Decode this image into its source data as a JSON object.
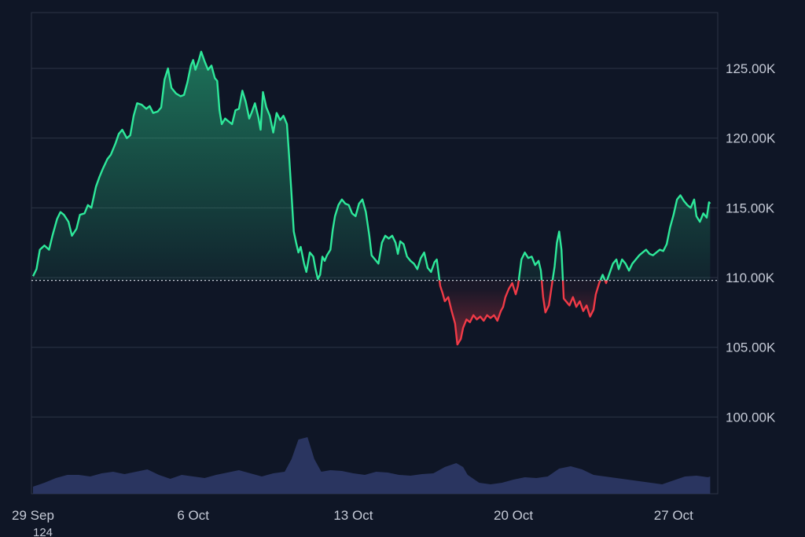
{
  "chart_data": {
    "type": "area",
    "baseline": 109.8,
    "y_unit_suffix": "K",
    "ylim": [
      94.5,
      129.0
    ],
    "grid": true,
    "y_ticks": [
      {
        "value": 125,
        "label": "125.00K"
      },
      {
        "value": 120,
        "label": "120.00K"
      },
      {
        "value": 115,
        "label": "115.00K"
      },
      {
        "value": 110,
        "label": "110.00K"
      },
      {
        "value": 105,
        "label": "105.00K"
      },
      {
        "value": 100,
        "label": "100.00K"
      }
    ],
    "x_ticks": [
      {
        "day": 0,
        "label": "29 Sep"
      },
      {
        "day": 7,
        "label": "6 Oct"
      },
      {
        "day": 14,
        "label": "13 Oct"
      },
      {
        "day": 21,
        "label": "20 Oct"
      },
      {
        "day": 28,
        "label": "27 Oct"
      }
    ],
    "extra_label": "124",
    "colors": {
      "up": "#2ee89a",
      "down": "#f03a47",
      "volume": "#2a3560",
      "grid": "#2c3445",
      "background": "#0f1626"
    },
    "price": [
      [
        0.0,
        110.1
      ],
      [
        0.15,
        110.6
      ],
      [
        0.3,
        112.0
      ],
      [
        0.5,
        112.3
      ],
      [
        0.7,
        112.0
      ],
      [
        0.85,
        113.0
      ],
      [
        1.05,
        114.2
      ],
      [
        1.2,
        114.7
      ],
      [
        1.35,
        114.5
      ],
      [
        1.55,
        114.0
      ],
      [
        1.7,
        113.0
      ],
      [
        1.9,
        113.5
      ],
      [
        2.05,
        114.5
      ],
      [
        2.25,
        114.6
      ],
      [
        2.4,
        115.2
      ],
      [
        2.55,
        115.0
      ],
      [
        2.75,
        116.5
      ],
      [
        2.9,
        117.2
      ],
      [
        3.05,
        117.8
      ],
      [
        3.25,
        118.5
      ],
      [
        3.4,
        118.8
      ],
      [
        3.6,
        119.6
      ],
      [
        3.75,
        120.3
      ],
      [
        3.9,
        120.6
      ],
      [
        4.1,
        120.0
      ],
      [
        4.25,
        120.2
      ],
      [
        4.4,
        121.6
      ],
      [
        4.55,
        122.5
      ],
      [
        4.75,
        122.4
      ],
      [
        4.95,
        122.1
      ],
      [
        5.1,
        122.3
      ],
      [
        5.25,
        121.8
      ],
      [
        5.45,
        121.9
      ],
      [
        5.6,
        122.2
      ],
      [
        5.75,
        124.2
      ],
      [
        5.9,
        125.0
      ],
      [
        6.05,
        123.6
      ],
      [
        6.25,
        123.2
      ],
      [
        6.45,
        123.0
      ],
      [
        6.6,
        123.1
      ],
      [
        6.75,
        124.0
      ],
      [
        6.9,
        125.2
      ],
      [
        7.0,
        125.6
      ],
      [
        7.1,
        124.9
      ],
      [
        7.25,
        125.6
      ],
      [
        7.35,
        126.2
      ],
      [
        7.5,
        125.5
      ],
      [
        7.65,
        124.9
      ],
      [
        7.8,
        125.2
      ],
      [
        7.95,
        124.3
      ],
      [
        8.05,
        124.1
      ],
      [
        8.15,
        122.0
      ],
      [
        8.25,
        121.0
      ],
      [
        8.4,
        121.4
      ],
      [
        8.55,
        121.2
      ],
      [
        8.7,
        121.0
      ],
      [
        8.85,
        122.0
      ],
      [
        9.0,
        122.1
      ],
      [
        9.15,
        123.4
      ],
      [
        9.3,
        122.6
      ],
      [
        9.45,
        121.4
      ],
      [
        9.55,
        121.8
      ],
      [
        9.7,
        122.5
      ],
      [
        9.85,
        121.5
      ],
      [
        9.95,
        120.6
      ],
      [
        10.05,
        123.3
      ],
      [
        10.2,
        122.2
      ],
      [
        10.35,
        121.6
      ],
      [
        10.5,
        120.4
      ],
      [
        10.65,
        121.8
      ],
      [
        10.8,
        121.3
      ],
      [
        10.95,
        121.6
      ],
      [
        11.1,
        121.0
      ],
      [
        11.2,
        118.6
      ],
      [
        11.3,
        116.0
      ],
      [
        11.4,
        113.3
      ],
      [
        11.5,
        112.5
      ],
      [
        11.6,
        111.8
      ],
      [
        11.7,
        112.2
      ],
      [
        11.85,
        111.0
      ],
      [
        11.95,
        110.4
      ],
      [
        12.1,
        111.8
      ],
      [
        12.25,
        111.5
      ],
      [
        12.35,
        110.6
      ],
      [
        12.45,
        109.9
      ],
      [
        12.55,
        110.2
      ],
      [
        12.65,
        111.5
      ],
      [
        12.75,
        111.2
      ],
      [
        12.85,
        111.6
      ],
      [
        13.0,
        112.0
      ],
      [
        13.1,
        113.4
      ],
      [
        13.2,
        114.4
      ],
      [
        13.35,
        115.2
      ],
      [
        13.5,
        115.6
      ],
      [
        13.65,
        115.3
      ],
      [
        13.8,
        115.2
      ],
      [
        13.95,
        114.6
      ],
      [
        14.1,
        114.4
      ],
      [
        14.25,
        115.3
      ],
      [
        14.4,
        115.6
      ],
      [
        14.55,
        114.7
      ],
      [
        14.7,
        113.0
      ],
      [
        14.8,
        111.6
      ],
      [
        14.95,
        111.3
      ],
      [
        15.1,
        111.0
      ],
      [
        15.25,
        112.5
      ],
      [
        15.4,
        113.0
      ],
      [
        15.55,
        112.8
      ],
      [
        15.7,
        113.0
      ],
      [
        15.85,
        112.5
      ],
      [
        15.95,
        111.7
      ],
      [
        16.05,
        112.6
      ],
      [
        16.2,
        112.4
      ],
      [
        16.35,
        111.5
      ],
      [
        16.5,
        111.2
      ],
      [
        16.65,
        111.0
      ],
      [
        16.8,
        110.6
      ],
      [
        16.95,
        111.4
      ],
      [
        17.1,
        111.8
      ],
      [
        17.25,
        110.7
      ],
      [
        17.4,
        110.4
      ],
      [
        17.55,
        111.1
      ],
      [
        17.65,
        111.3
      ],
      [
        17.8,
        109.4
      ],
      [
        17.9,
        108.9
      ],
      [
        18.0,
        108.3
      ],
      [
        18.15,
        108.6
      ],
      [
        18.3,
        107.6
      ],
      [
        18.45,
        106.7
      ],
      [
        18.55,
        105.2
      ],
      [
        18.7,
        105.6
      ],
      [
        18.8,
        106.4
      ],
      [
        18.95,
        107.0
      ],
      [
        19.1,
        106.8
      ],
      [
        19.25,
        107.3
      ],
      [
        19.4,
        107.0
      ],
      [
        19.55,
        107.2
      ],
      [
        19.7,
        106.9
      ],
      [
        19.85,
        107.3
      ],
      [
        20.0,
        107.1
      ],
      [
        20.15,
        107.3
      ],
      [
        20.3,
        106.9
      ],
      [
        20.45,
        107.6
      ],
      [
        20.55,
        107.9
      ],
      [
        20.65,
        108.6
      ],
      [
        20.8,
        109.2
      ],
      [
        20.95,
        109.6
      ],
      [
        21.1,
        108.8
      ],
      [
        21.2,
        109.4
      ],
      [
        21.35,
        111.3
      ],
      [
        21.5,
        111.8
      ],
      [
        21.65,
        111.4
      ],
      [
        21.8,
        111.5
      ],
      [
        21.95,
        110.9
      ],
      [
        22.1,
        111.2
      ],
      [
        22.2,
        110.5
      ],
      [
        22.3,
        108.6
      ],
      [
        22.4,
        107.5
      ],
      [
        22.55,
        108.0
      ],
      [
        22.7,
        109.7
      ],
      [
        22.8,
        110.8
      ],
      [
        22.9,
        112.5
      ],
      [
        23.0,
        113.3
      ],
      [
        23.1,
        112.0
      ],
      [
        23.2,
        108.5
      ],
      [
        23.3,
        108.3
      ],
      [
        23.45,
        108.0
      ],
      [
        23.6,
        108.6
      ],
      [
        23.75,
        107.9
      ],
      [
        23.9,
        108.3
      ],
      [
        24.05,
        107.6
      ],
      [
        24.2,
        108.0
      ],
      [
        24.35,
        107.2
      ],
      [
        24.5,
        107.7
      ],
      [
        24.6,
        108.8
      ],
      [
        24.75,
        109.6
      ],
      [
        24.9,
        110.2
      ],
      [
        25.05,
        109.6
      ],
      [
        25.2,
        110.3
      ],
      [
        25.35,
        111.0
      ],
      [
        25.5,
        111.3
      ],
      [
        25.6,
        110.6
      ],
      [
        25.75,
        111.3
      ],
      [
        25.9,
        111.0
      ],
      [
        26.05,
        110.5
      ],
      [
        26.2,
        111.0
      ],
      [
        26.35,
        111.3
      ],
      [
        26.5,
        111.6
      ],
      [
        26.65,
        111.8
      ],
      [
        26.8,
        112.0
      ],
      [
        26.95,
        111.7
      ],
      [
        27.1,
        111.6
      ],
      [
        27.25,
        111.8
      ],
      [
        27.4,
        112.0
      ],
      [
        27.55,
        111.9
      ],
      [
        27.7,
        112.4
      ],
      [
        27.85,
        113.6
      ],
      [
        28.0,
        114.5
      ],
      [
        28.15,
        115.6
      ],
      [
        28.3,
        115.9
      ],
      [
        28.45,
        115.5
      ],
      [
        28.6,
        115.2
      ],
      [
        28.75,
        115.0
      ],
      [
        28.9,
        115.6
      ],
      [
        29.0,
        114.4
      ],
      [
        29.15,
        114.0
      ],
      [
        29.3,
        114.6
      ],
      [
        29.45,
        114.3
      ],
      [
        29.55,
        115.4
      ],
      [
        29.6,
        115.3
      ]
    ],
    "volume": [
      [
        0.0,
        0.05
      ],
      [
        0.5,
        0.1
      ],
      [
        1.0,
        0.16
      ],
      [
        1.5,
        0.2
      ],
      [
        2.0,
        0.2
      ],
      [
        2.5,
        0.18
      ],
      [
        3.0,
        0.22
      ],
      [
        3.5,
        0.24
      ],
      [
        4.0,
        0.21
      ],
      [
        4.5,
        0.24
      ],
      [
        5.0,
        0.27
      ],
      [
        5.5,
        0.2
      ],
      [
        6.0,
        0.15
      ],
      [
        6.5,
        0.2
      ],
      [
        7.0,
        0.18
      ],
      [
        7.5,
        0.16
      ],
      [
        8.0,
        0.2
      ],
      [
        8.5,
        0.23
      ],
      [
        9.0,
        0.26
      ],
      [
        9.5,
        0.22
      ],
      [
        10.0,
        0.18
      ],
      [
        10.5,
        0.22
      ],
      [
        11.0,
        0.24
      ],
      [
        11.3,
        0.4
      ],
      [
        11.6,
        0.65
      ],
      [
        12.0,
        0.68
      ],
      [
        12.3,
        0.4
      ],
      [
        12.6,
        0.24
      ],
      [
        13.0,
        0.26
      ],
      [
        13.5,
        0.25
      ],
      [
        14.0,
        0.22
      ],
      [
        14.5,
        0.2
      ],
      [
        15.0,
        0.24
      ],
      [
        15.5,
        0.23
      ],
      [
        16.0,
        0.2
      ],
      [
        16.5,
        0.19
      ],
      [
        17.0,
        0.21
      ],
      [
        17.5,
        0.22
      ],
      [
        18.0,
        0.3
      ],
      [
        18.5,
        0.35
      ],
      [
        18.8,
        0.3
      ],
      [
        19.0,
        0.2
      ],
      [
        19.5,
        0.1
      ],
      [
        20.0,
        0.08
      ],
      [
        20.5,
        0.1
      ],
      [
        21.0,
        0.14
      ],
      [
        21.5,
        0.17
      ],
      [
        22.0,
        0.16
      ],
      [
        22.5,
        0.18
      ],
      [
        23.0,
        0.28
      ],
      [
        23.5,
        0.31
      ],
      [
        24.0,
        0.27
      ],
      [
        24.5,
        0.2
      ],
      [
        25.0,
        0.18
      ],
      [
        25.5,
        0.16
      ],
      [
        26.0,
        0.14
      ],
      [
        26.5,
        0.12
      ],
      [
        27.0,
        0.1
      ],
      [
        27.5,
        0.08
      ],
      [
        28.0,
        0.13
      ],
      [
        28.5,
        0.18
      ],
      [
        29.0,
        0.19
      ],
      [
        29.5,
        0.17
      ],
      [
        29.6,
        0.18
      ]
    ]
  }
}
